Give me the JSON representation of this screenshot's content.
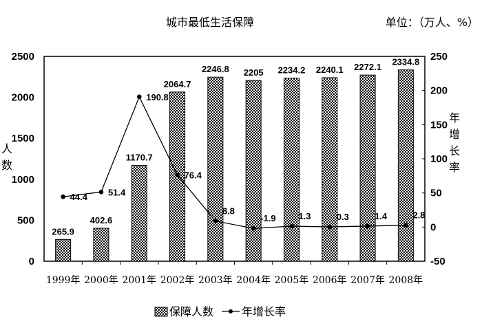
{
  "chart_data": {
    "type": "bar+line",
    "title": "城市最低生活保障",
    "unit_note": "单位：（万人、%）",
    "categories": [
      "1999年",
      "2000年",
      "2001年",
      "2002年",
      "2003年",
      "2004年",
      "2005年",
      "2006年",
      "2007年",
      "2008年"
    ],
    "series": [
      {
        "name": "保障人数",
        "type": "bar",
        "axis": "left",
        "values": [
          265.9,
          402.6,
          1170.7,
          2064.7,
          2246.8,
          2205,
          2234.2,
          2240.1,
          2272.1,
          2334.8
        ],
        "labels": [
          "265.9",
          "402.6",
          "1170.7",
          "2064.7",
          "2246.8",
          "2205",
          "2234.2",
          "2240.1",
          "2272.1",
          "2334.8"
        ]
      },
      {
        "name": "年增长率",
        "type": "line",
        "axis": "right",
        "values": [
          44.4,
          51.4,
          190.8,
          76.4,
          8.8,
          -1.9,
          1.3,
          0.3,
          1.4,
          2.8
        ],
        "labels": [
          "44.4",
          "51.4",
          "190.8",
          "76.4",
          "8.8",
          "-1.9",
          "1.3",
          "0.3",
          "1.4",
          "2.8"
        ]
      }
    ],
    "ylabel": "人数",
    "y2label": "年增长率",
    "ylim": [
      0,
      2500
    ],
    "y2lim": [
      -50,
      250
    ],
    "yticks": [
      "0",
      "500",
      "1000",
      "1500",
      "2000",
      "2500"
    ],
    "y2ticks": [
      "-50",
      "0",
      "50",
      "100",
      "150",
      "200",
      "250"
    ],
    "grid": false,
    "legend_position": "bottom",
    "bar_pattern": "checkerboard"
  }
}
